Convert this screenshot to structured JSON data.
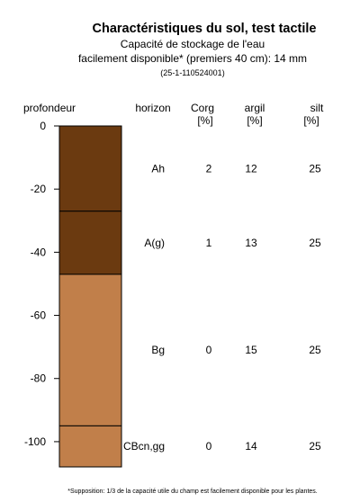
{
  "header": {
    "title": "Charactéristiques du sol, test tactile",
    "subtitle_line1": "Capacité de stockage de l'eau",
    "subtitle_line2": "facilement disponible* (premiers 40 cm): 14 mm",
    "code": "(25-1-110524001)"
  },
  "footnote": "*Supposition: 1/3 de la capacité utile du champ est facilement disponible pour les plantes.",
  "chart_data": {
    "type": "soil-profile",
    "ylabel": "profondeur",
    "ylim": [
      -108,
      0
    ],
    "yticks": [
      0,
      -20,
      -40,
      -60,
      -80,
      -100
    ],
    "column_headers": {
      "horizon": "horizon",
      "corg": [
        "Corg",
        "[%]"
      ],
      "argil": [
        "argil",
        "[%]"
      ],
      "silt": [
        "silt",
        "[%]"
      ]
    },
    "horizons": [
      {
        "name": "Ah",
        "top": 0,
        "bottom": -27,
        "corg": 2,
        "argil": 12,
        "silt": 25,
        "color": "#6b3a10"
      },
      {
        "name": "A(g)",
        "top": -27,
        "bottom": -47,
        "corg": 1,
        "argil": 13,
        "silt": 25,
        "color": "#6b3a10"
      },
      {
        "name": "Bg",
        "top": -47,
        "bottom": -95,
        "corg": 0,
        "argil": 15,
        "silt": 25,
        "color": "#c17f4a"
      },
      {
        "name": "CBcn,gg",
        "top": -95,
        "bottom": -108,
        "corg": 0,
        "argil": 14,
        "silt": 25,
        "color": "#c17f4a"
      }
    ],
    "label_depths": [
      -13.5,
      -37,
      -71,
      -101.5
    ]
  }
}
